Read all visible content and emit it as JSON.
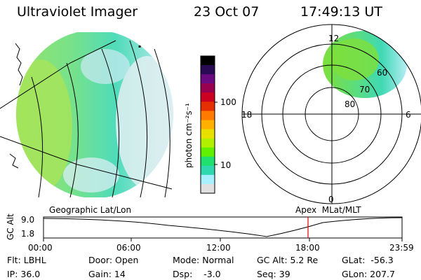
{
  "header": {
    "instrument": "Ultraviolet Imager",
    "date": "23 Oct 07",
    "time": "17:49:13 UT"
  },
  "colorbar": {
    "unit_label": "photon cm⁻²s⁻¹",
    "ticks": [
      "100",
      "10"
    ],
    "colors": [
      "#000000",
      "#2a0a55",
      "#6a0a80",
      "#9a0050",
      "#cc0020",
      "#e63000",
      "#ff7a00",
      "#ffb000",
      "#e8e000",
      "#b0f000",
      "#60f000",
      "#20e070",
      "#30d8b0",
      "#a8f0ff",
      "#e0e0e0"
    ]
  },
  "left_map": {
    "caption": "Geographic Lat/Lon"
  },
  "right_map": {
    "caption": "Apex  MLat/MLT",
    "mlt_labels": {
      "top": "12",
      "left": "18",
      "right": "6",
      "bottom": "0"
    },
    "lat_labels": [
      "60",
      "70",
      "80"
    ]
  },
  "altitude_plot": {
    "ylabel": "GC Alt",
    "yticks": [
      "9.0",
      "1.8"
    ],
    "xticks": [
      "00:00",
      "06:00",
      "12:00",
      "18:00",
      "23:59"
    ],
    "current_time_marker_color": "#dd0000"
  },
  "status": {
    "flt": "Flt: LBHL",
    "ip": "IP: 36.0",
    "door": "Door: Open",
    "gain": "Gain: 14",
    "mode": "Mode: Normal",
    "dsp": "Dsp:    -3.0",
    "gc_alt": "GC Alt: 5.2 Re",
    "seq": "Seq: 39",
    "glat": "GLat:  -56.3",
    "glon": "GLon: 207.7"
  }
}
